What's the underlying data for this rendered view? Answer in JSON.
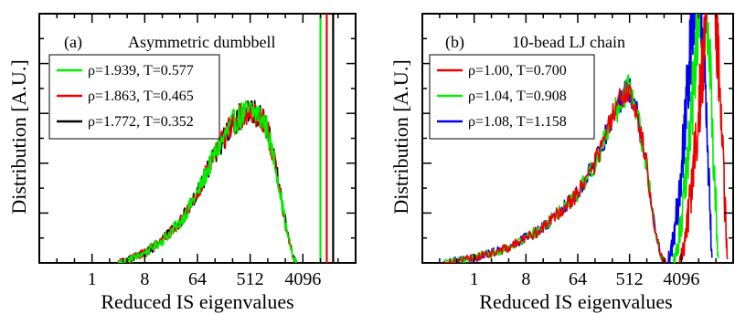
{
  "chart_data": [
    {
      "type": "line",
      "panel_label": "(a)",
      "title": "Asymmetric dumbbell",
      "xlabel": "Reduced IS eigenvalues",
      "ylabel": "Distribution [A.U.]",
      "x_scale": "log2",
      "x_ticks": [
        "1",
        "8",
        "64",
        "512",
        "4096"
      ],
      "xlim": [
        0.125,
        32768
      ],
      "ylim": [
        0,
        1.0
      ],
      "grid": false,
      "legend_position": "top-left",
      "series": [
        {
          "name": "ρ=1.939, T=0.577",
          "color": "#00ee00"
        },
        {
          "name": "ρ=1.863, T=0.465",
          "color": "#ee0000"
        },
        {
          "name": "ρ=1.772, T=0.352",
          "color": "#000000"
        }
      ],
      "shape_points": [
        [
          2.8,
          0.0
        ],
        [
          4,
          0.01
        ],
        [
          8,
          0.04
        ],
        [
          16,
          0.09
        ],
        [
          32,
          0.16
        ],
        [
          64,
          0.28
        ],
        [
          128,
          0.44
        ],
        [
          256,
          0.56
        ],
        [
          400,
          0.6
        ],
        [
          512,
          0.61
        ],
        [
          700,
          0.6
        ],
        [
          1000,
          0.54
        ],
        [
          1500,
          0.35
        ],
        [
          2200,
          0.12
        ],
        [
          2800,
          0.02
        ],
        [
          3200,
          0.0
        ]
      ],
      "vertical_lines": [
        {
          "x": 8192,
          "color": "#00ee00"
        },
        {
          "x": 10500,
          "color": "#ee0000"
        },
        {
          "x": 13500,
          "color": "#000000"
        }
      ]
    },
    {
      "type": "line",
      "panel_label": "(b)",
      "title": "10-bead LJ chain",
      "xlabel": "Reduced IS eigenvalues",
      "ylabel": "Distribution [A.U.]",
      "x_scale": "log2",
      "x_ticks": [
        "1",
        "8",
        "64",
        "512",
        "4096"
      ],
      "xlim": [
        0.125,
        32768
      ],
      "ylim": [
        0,
        1.0
      ],
      "grid": false,
      "legend_position": "top-left",
      "series": [
        {
          "name": "ρ=1.00, T=0.700",
          "color": "#ee0000"
        },
        {
          "name": "ρ=1.04, T=0.908",
          "color": "#00ee00"
        },
        {
          "name": "ρ=1.08, T=1.158",
          "color": "#0000ee"
        }
      ],
      "shape_points": [
        [
          0.3,
          0.0
        ],
        [
          1,
          0.02
        ],
        [
          4,
          0.06
        ],
        [
          16,
          0.14
        ],
        [
          64,
          0.28
        ],
        [
          128,
          0.4
        ],
        [
          256,
          0.58
        ],
        [
          384,
          0.66
        ],
        [
          448,
          0.7
        ],
        [
          512,
          0.69
        ],
        [
          700,
          0.6
        ],
        [
          1000,
          0.4
        ],
        [
          1400,
          0.15
        ],
        [
          1800,
          0.03
        ],
        [
          2200,
          0.0
        ]
      ],
      "peak_bands": [
        {
          "series": 2,
          "start": 2400,
          "peak": 8000,
          "end": 14000
        },
        {
          "series": 1,
          "start": 3000,
          "peak": 10000,
          "end": 18000
        },
        {
          "series": 0,
          "start": 3800,
          "peak": 14000,
          "end": 26000
        }
      ]
    }
  ]
}
